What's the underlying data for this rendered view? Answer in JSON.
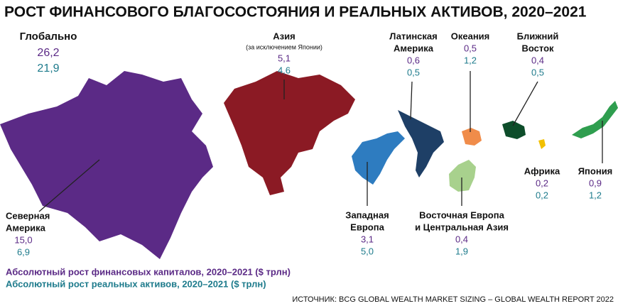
{
  "title": "РОСТ ФИНАНСОВОГО БЛАГОСОСТОЯНИЯ И РЕАЛЬНЫХ АКТИВОВ, 2020–2021",
  "global": {
    "label": "Глобально",
    "financial": "26,2",
    "real": "21,9"
  },
  "regions": [
    {
      "name": [
        "Северная",
        "Америка"
      ],
      "financial": "15,0",
      "real": "6,9"
    },
    {
      "name": [
        "Азия"
      ],
      "note": "(за исключением Японии)",
      "financial": "5,1",
      "real": "4,6"
    },
    {
      "name": [
        "Латинская",
        "Америка"
      ],
      "financial": "0,6",
      "real": "0,5"
    },
    {
      "name": [
        "Океания"
      ],
      "financial": "0,5",
      "real": "1,2"
    },
    {
      "name": [
        "Ближний",
        "Восток"
      ],
      "financial": "0,4",
      "real": "0,5"
    },
    {
      "name": [
        "Африка"
      ],
      "financial": "0,2",
      "real": "0,2"
    },
    {
      "name": [
        "Япония"
      ],
      "financial": "0,9",
      "real": "1,2"
    },
    {
      "name": [
        "Западная",
        "Европа"
      ],
      "financial": "3,1",
      "real": "5,0"
    },
    {
      "name": [
        "Восточная Европа",
        "и Центральная Азия"
      ],
      "financial": "0,4",
      "real": "1,9"
    }
  ],
  "legend": {
    "financial": "Абсолютный рост финансовых капиталов, 2020–2021 ($ трлн)",
    "real": "Абсолютный рост реальных активов, 2020–2021 ($ трлн)"
  },
  "source": "ИСТОЧНИК: BCG GLOBAL WEALTH MARKET SIZING – GLOBAL WEALTH REPORT 2022"
}
